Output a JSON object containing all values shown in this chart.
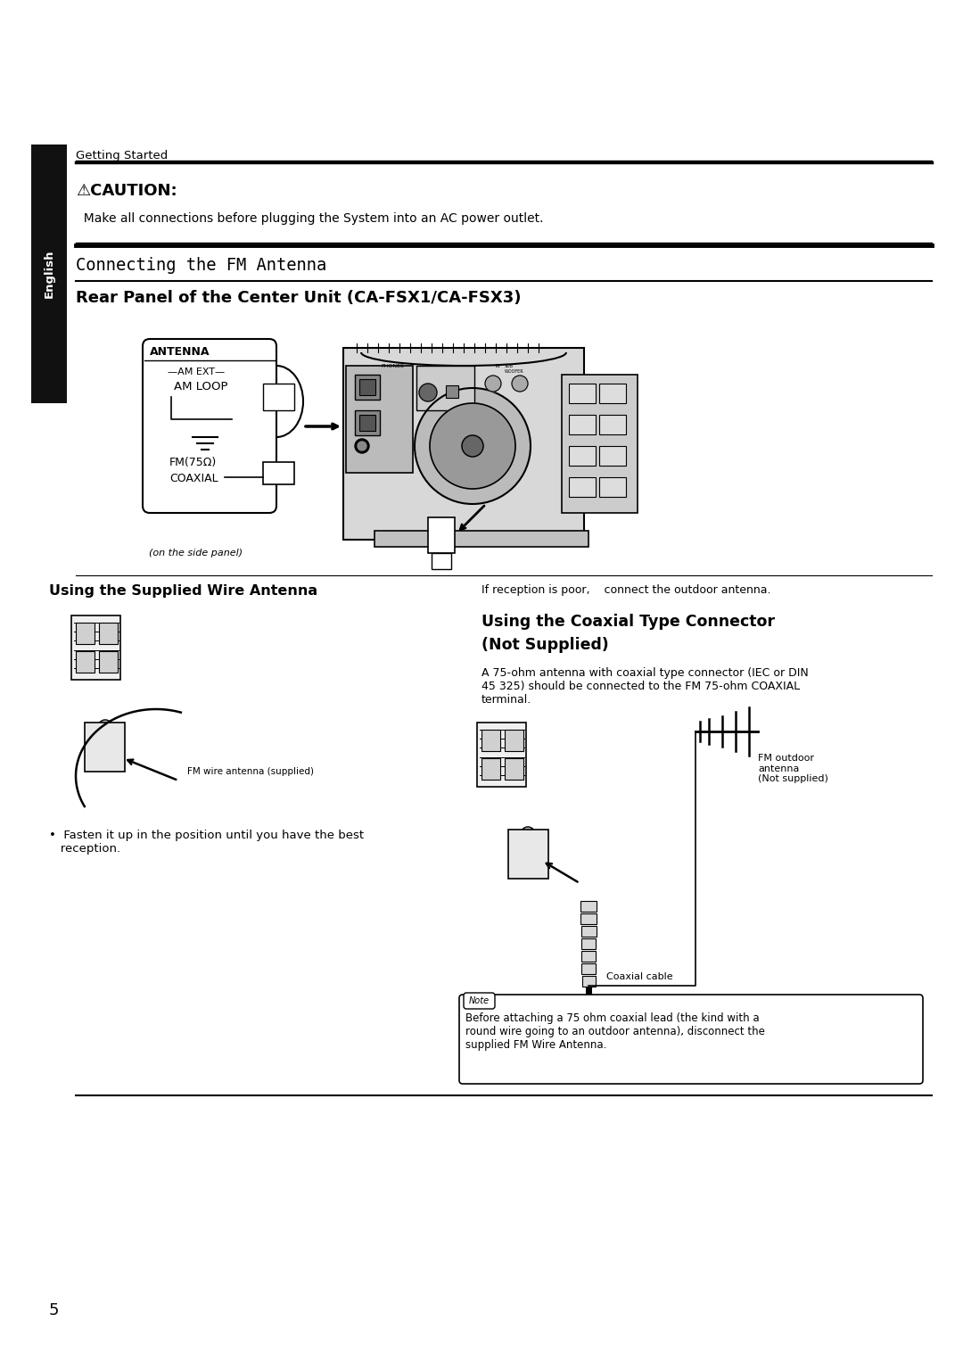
{
  "bg_color": "#ffffff",
  "page_width": 10.8,
  "page_height": 15.28,
  "left_tab_color": "#111111",
  "left_tab_text": "English",
  "section_getting_started": "Getting Started",
  "caution_title": "⚠CAUTION:",
  "caution_body": "  Make all connections before plugging the System into an AC power outlet.",
  "section_title": "Connecting the FM Antenna",
  "subsection1": "Rear Panel of the Center Unit (CA-FSX1/CA-FSX3)",
  "side_panel_note": "(on the side panel)",
  "subsection2": "Using the Supplied Wire Antenna",
  "wire_antenna_label": "FM wire antenna (supplied)",
  "bullet_text": "•  Fasten it up in the position until you have the best\n   reception.",
  "poor_reception_text": "If reception is poor,    connect the outdoor antenna.",
  "coaxial_title_line1": "Using the Coaxial Type Connector",
  "coaxial_title_line2": "(Not Supplied)",
  "coaxial_body": "A 75-ohm antenna with coaxial type connector (IEC or DIN\n45 325) should be connected to the FM 75-ohm COAXIAL\nterminal.",
  "outdoor_label": "FM outdoor\nantenna\n(Not supplied)",
  "coaxial_cable_label": "Coaxial cable",
  "note_box_text": "Before attaching a 75 ohm coaxial lead (the kind with a\nround wire going to an outdoor antenna), disconnect the\nsupplied FM Wire Antenna.",
  "page_number": "5"
}
